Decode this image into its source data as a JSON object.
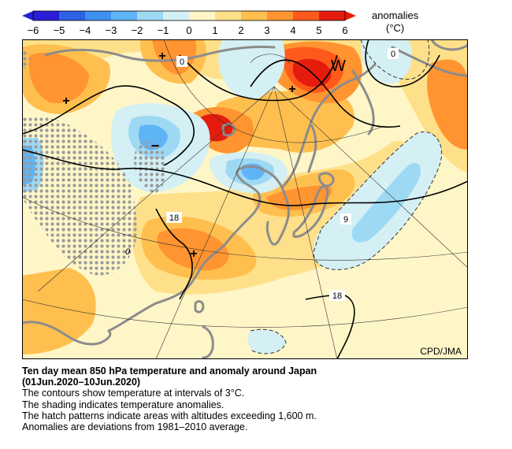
{
  "colorbar": {
    "ticks": [
      "−6",
      "−5",
      "−4",
      "−3",
      "−2",
      "−1",
      "0",
      "1",
      "2",
      "3",
      "4",
      "5",
      "6"
    ],
    "colors": [
      "#2a1fd6",
      "#2d62e6",
      "#3d8ff0",
      "#5fb4f5",
      "#9ed9f4",
      "#d4f0f4",
      "#fff6c8",
      "#ffe08a",
      "#ffbf4f",
      "#ff9430",
      "#ff5a1c",
      "#e51c0d"
    ],
    "unit_label": "anomalies",
    "unit": "(°C)"
  },
  "map": {
    "credit": "CPD/JMA",
    "contour_labels": {
      "north_zero": "0",
      "northeast_zero": "0",
      "west_eighteen": "18",
      "east_nine": "9",
      "south_eighteen": "18"
    },
    "symbols": {
      "warm_markers": [
        "+",
        "+",
        "+",
        "+"
      ],
      "cold_marker": "−",
      "west_wind": "W",
      "low_value_marker": "0"
    },
    "colors": {
      "ocean_base": "#fff6c8",
      "land_outline": "#8c8c8c",
      "contour": "#000000",
      "hatch": "#9a9a9a"
    }
  },
  "caption": {
    "title": "Ten day mean 850 hPa temperature and anomaly around Japan",
    "period": "(01Jun.2020–10Jun.2020)",
    "lines": [
      "The contours show temperature at intervals of 3°C.",
      "The shading indicates temperature anomalies.",
      "The hatch patterns indicate areas with altitudes exceeding 1,600 m.",
      "Anomalies are deviations from 1981–2010 average."
    ]
  }
}
